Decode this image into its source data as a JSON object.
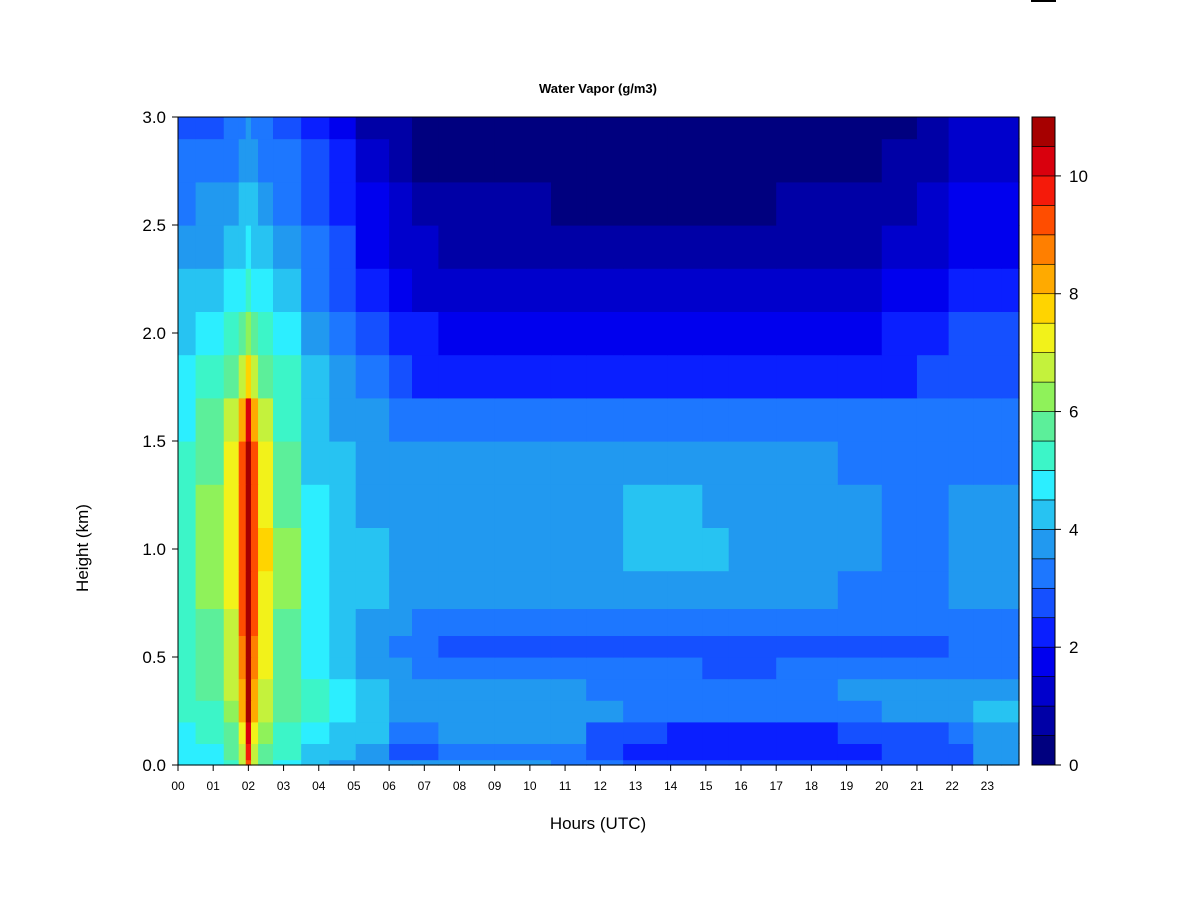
{
  "chart_data": {
    "type": "heatmap",
    "title": "Water Vapor (g/m3)",
    "xlabel": "Hours (UTC)",
    "ylabel": "Height (km)",
    "x_ticks": [
      "00",
      "01",
      "02",
      "03",
      "04",
      "05",
      "06",
      "07",
      "08",
      "09",
      "10",
      "11",
      "12",
      "13",
      "14",
      "15",
      "16",
      "17",
      "18",
      "19",
      "20",
      "21",
      "22",
      "23"
    ],
    "y_ticks": [
      "0.0",
      "0.5",
      "1.0",
      "1.5",
      "2.0",
      "2.5",
      "3.0"
    ],
    "xlim": [
      0,
      23.9
    ],
    "ylim": [
      0,
      3.0
    ],
    "colorbar": {
      "range": [
        0,
        11
      ],
      "ticks": [
        "0",
        "2",
        "4",
        "6",
        "8",
        "10"
      ],
      "levels": [
        0,
        0.5,
        1,
        1.5,
        2,
        2.5,
        3,
        3.5,
        4,
        4.5,
        5,
        5.5,
        6,
        6.5,
        7,
        7.5,
        8,
        8.5,
        9,
        9.5,
        10,
        10.5,
        11
      ],
      "colors": [
        "#00007f",
        "#0000a6",
        "#0000cc",
        "#0000ee",
        "#0a1fff",
        "#1550ff",
        "#1d77ff",
        "#2199f0",
        "#27c3f2",
        "#2ceeff",
        "#3cf5c8",
        "#5cef9a",
        "#8ff25a",
        "#c4f23c",
        "#f2f21a",
        "#ffd400",
        "#ffaa00",
        "#ff7f00",
        "#ff4d00",
        "#f51a0a",
        "#d9000d",
        "#a60000"
      ]
    },
    "grid_hours": [
      0,
      1,
      1.6,
      1.85,
      2.0,
      2.15,
      2.4,
      3,
      4,
      4.6,
      5.5,
      6.5,
      6.8,
      8,
      10,
      11.2,
      12,
      13.3,
      14.5,
      15.3,
      16,
      18,
      19.5,
      20.5,
      21.5,
      22.3,
      22.9,
      23.9
    ],
    "grid_heights": [
      0.0,
      0.05,
      0.15,
      0.25,
      0.35,
      0.45,
      0.55,
      0.65,
      0.8,
      1.0,
      1.2,
      1.4,
      1.6,
      1.8,
      2.0,
      2.2,
      2.4,
      2.6,
      2.8,
      3.0
    ],
    "values": [
      [
        4.6,
        4.6,
        5.3,
        6.5,
        9.0,
        6.5,
        5.5,
        4.8,
        4.2,
        3.9,
        3.7,
        3.6,
        3.6,
        3.6,
        3.5,
        3.3,
        3.0,
        2.8,
        2.8,
        2.8,
        2.8,
        2.8,
        2.8,
        2.8,
        2.8,
        2.9,
        3.6,
        3.6
      ],
      [
        4.7,
        4.8,
        5.5,
        6.8,
        9.5,
        6.8,
        5.7,
        5.0,
        4.4,
        4.0,
        3.8,
        2.9,
        2.9,
        3.0,
        3.0,
        3.0,
        2.6,
        2.3,
        2.3,
        2.2,
        2.2,
        2.2,
        2.3,
        2.5,
        2.6,
        2.8,
        3.6,
        3.6
      ],
      [
        4.8,
        5.0,
        5.8,
        7.2,
        10.0,
        7.2,
        6.0,
        5.2,
        4.6,
        4.3,
        4.1,
        3.4,
        3.4,
        3.5,
        3.5,
        3.5,
        2.8,
        2.5,
        2.4,
        2.3,
        2.3,
        2.4,
        2.5,
        2.7,
        2.8,
        3.0,
        3.6,
        3.6
      ],
      [
        5.0,
        5.3,
        6.2,
        8.0,
        10.5,
        8.0,
        6.5,
        5.6,
        5.0,
        4.6,
        4.2,
        3.8,
        3.8,
        3.8,
        3.8,
        3.7,
        3.5,
        3.3,
        3.2,
        3.2,
        3.2,
        3.3,
        3.4,
        3.5,
        3.6,
        3.7,
        4.0,
        4.0
      ],
      [
        5.1,
        5.5,
        6.5,
        8.4,
        10.8,
        8.4,
        6.8,
        5.7,
        5.0,
        4.5,
        4.0,
        3.7,
        3.6,
        3.6,
        3.6,
        3.5,
        3.4,
        3.3,
        3.3,
        3.3,
        3.3,
        3.4,
        3.5,
        3.6,
        3.7,
        3.8,
        3.8,
        3.8
      ],
      [
        5.0,
        5.6,
        6.7,
        8.6,
        11.0,
        8.6,
        7.0,
        5.8,
        4.8,
        4.3,
        3.9,
        3.6,
        3.4,
        3.2,
        3.2,
        3.2,
        3.1,
        3.0,
        3.0,
        2.9,
        2.9,
        3.0,
        3.1,
        3.2,
        3.3,
        3.4,
        3.4,
        3.4
      ],
      [
        5.0,
        5.7,
        6.8,
        8.8,
        11.0,
        8.8,
        7.1,
        5.8,
        4.6,
        4.2,
        3.8,
        3.3,
        3.0,
        2.7,
        2.6,
        2.6,
        2.6,
        2.6,
        2.6,
        2.6,
        2.6,
        2.6,
        2.6,
        2.7,
        2.9,
        3.0,
        3.0,
        3.0
      ],
      [
        5.1,
        5.8,
        6.9,
        9.0,
        11.0,
        9.0,
        7.2,
        5.9,
        4.6,
        4.2,
        3.9,
        3.6,
        3.4,
        3.2,
        3.2,
        3.2,
        3.3,
        3.3,
        3.3,
        3.3,
        3.3,
        3.2,
        3.1,
        3.1,
        3.2,
        3.3,
        3.4,
        3.4
      ],
      [
        5.3,
        6.0,
        7.1,
        9.2,
        11.0,
        9.2,
        7.4,
        6.0,
        4.7,
        4.3,
        4.0,
        3.8,
        3.6,
        3.5,
        3.5,
        3.5,
        3.6,
        3.7,
        3.7,
        3.7,
        3.6,
        3.5,
        3.4,
        3.4,
        3.4,
        3.5,
        3.6,
        3.6
      ],
      [
        5.4,
        6.1,
        7.2,
        9.3,
        11.0,
        9.3,
        7.5,
        6.0,
        4.7,
        4.3,
        4.0,
        3.8,
        3.7,
        3.6,
        3.6,
        3.6,
        3.9,
        4.1,
        4.2,
        4.1,
        3.9,
        3.6,
        3.5,
        3.4,
        3.4,
        3.5,
        3.6,
        3.6
      ],
      [
        5.3,
        6.0,
        7.1,
        9.2,
        11.0,
        9.2,
        7.3,
        5.9,
        4.6,
        4.2,
        3.9,
        3.7,
        3.6,
        3.6,
        3.6,
        3.6,
        3.8,
        4.0,
        4.0,
        3.9,
        3.8,
        3.6,
        3.5,
        3.4,
        3.4,
        3.5,
        3.5,
        3.5
      ],
      [
        5.1,
        5.8,
        7.0,
        9.0,
        10.8,
        9.0,
        7.0,
        5.7,
        4.4,
        4.1,
        3.8,
        3.6,
        3.5,
        3.5,
        3.5,
        3.5,
        3.6,
        3.7,
        3.7,
        3.7,
        3.6,
        3.5,
        3.4,
        3.3,
        3.3,
        3.4,
        3.4,
        3.4
      ],
      [
        4.9,
        5.5,
        6.6,
        8.2,
        10.0,
        8.2,
        6.5,
        5.4,
        4.2,
        3.9,
        3.5,
        3.2,
        3.0,
        3.0,
        3.0,
        3.0,
        3.1,
        3.2,
        3.2,
        3.2,
        3.1,
        3.0,
        3.0,
        3.0,
        3.0,
        3.1,
        3.1,
        3.1
      ],
      [
        4.6,
        5.0,
        5.8,
        6.5,
        7.5,
        6.5,
        5.8,
        5.0,
        4.0,
        3.5,
        3.0,
        2.6,
        2.3,
        2.2,
        2.2,
        2.2,
        2.3,
        2.4,
        2.4,
        2.4,
        2.3,
        2.3,
        2.3,
        2.4,
        2.6,
        2.9,
        2.9,
        2.9
      ],
      [
        4.3,
        4.6,
        5.1,
        5.6,
        6.0,
        5.6,
        5.1,
        4.6,
        3.7,
        3.2,
        2.7,
        2.3,
        2.0,
        1.8,
        1.8,
        1.8,
        1.8,
        1.9,
        1.9,
        1.9,
        1.9,
        1.9,
        1.9,
        2.0,
        2.2,
        2.5,
        2.5,
        2.5
      ],
      [
        4.0,
        4.2,
        4.6,
        4.9,
        5.2,
        4.9,
        4.6,
        4.2,
        3.4,
        2.9,
        2.2,
        1.8,
        1.4,
        1.2,
        1.1,
        1.1,
        1.1,
        1.2,
        1.2,
        1.2,
        1.2,
        1.3,
        1.4,
        1.6,
        1.8,
        2.2,
        2.2,
        2.2
      ],
      [
        3.7,
        3.8,
        4.1,
        4.4,
        4.6,
        4.4,
        4.1,
        3.8,
        3.1,
        2.6,
        1.8,
        1.3,
        1.0,
        0.8,
        0.7,
        0.7,
        0.7,
        0.7,
        0.7,
        0.7,
        0.7,
        0.8,
        0.9,
        1.1,
        1.4,
        1.9,
        1.9,
        1.9
      ],
      [
        3.4,
        3.5,
        3.7,
        4.0,
        4.2,
        4.0,
        3.7,
        3.4,
        2.8,
        2.3,
        1.5,
        1.0,
        0.7,
        0.5,
        0.5,
        0.4,
        0.4,
        0.4,
        0.4,
        0.4,
        0.4,
        0.5,
        0.6,
        0.8,
        1.1,
        1.6,
        1.6,
        1.6
      ],
      [
        3.1,
        3.2,
        3.4,
        3.7,
        3.9,
        3.7,
        3.4,
        3.1,
        2.5,
        2.0,
        1.2,
        0.7,
        0.4,
        0.3,
        0.2,
        0.2,
        0.2,
        0.2,
        0.2,
        0.2,
        0.2,
        0.3,
        0.4,
        0.5,
        0.8,
        1.3,
        1.3,
        1.3
      ],
      [
        2.8,
        2.9,
        3.1,
        3.4,
        3.6,
        3.4,
        3.1,
        2.8,
        2.2,
        1.7,
        0.9,
        0.5,
        0.3,
        0.2,
        0.1,
        0.1,
        0.1,
        0.1,
        0.1,
        0.1,
        0.1,
        0.2,
        0.3,
        0.4,
        0.6,
        1.0,
        1.0,
        1.0
      ]
    ]
  }
}
